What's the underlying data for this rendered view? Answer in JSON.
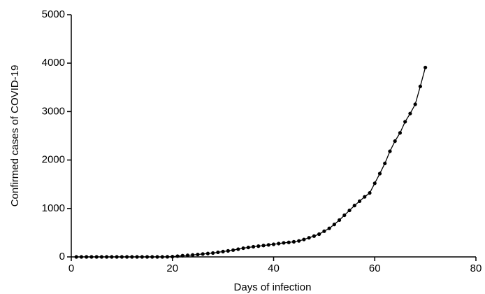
{
  "chart_data": {
    "type": "line",
    "x_label": "Days of infection",
    "y_label": "Confirmed cases of COVID-19",
    "x": [
      1,
      2,
      3,
      4,
      5,
      6,
      7,
      8,
      9,
      10,
      11,
      12,
      13,
      14,
      15,
      16,
      17,
      18,
      19,
      20,
      21,
      22,
      23,
      24,
      25,
      26,
      27,
      28,
      29,
      30,
      31,
      32,
      33,
      34,
      35,
      36,
      37,
      38,
      39,
      40,
      41,
      42,
      43,
      44,
      45,
      46,
      47,
      48,
      49,
      50,
      51,
      52,
      53,
      54,
      55,
      56,
      57,
      58,
      59,
      60,
      61,
      62,
      63,
      64,
      65,
      66,
      67,
      68,
      69,
      70
    ],
    "values": [
      0,
      0,
      0,
      0,
      0,
      0,
      0,
      0,
      0,
      0,
      0,
      0,
      0,
      0,
      0,
      0,
      0,
      0,
      2,
      5,
      15,
      25,
      32,
      40,
      50,
      60,
      70,
      80,
      95,
      110,
      125,
      140,
      160,
      180,
      195,
      210,
      222,
      235,
      248,
      260,
      275,
      290,
      300,
      312,
      330,
      360,
      395,
      430,
      470,
      530,
      590,
      670,
      760,
      860,
      960,
      1060,
      1150,
      1240,
      1320,
      1520,
      1720,
      1930,
      2180,
      2390,
      2560,
      2790,
      2960,
      3150,
      3520,
      3910
    ],
    "color": "#000000",
    "xlim": [
      0,
      80
    ],
    "xticks": [
      0,
      20,
      40,
      60,
      80
    ],
    "ylim": [
      0,
      5000
    ],
    "yticks": [
      0,
      1000,
      2000,
      3000,
      4000,
      5000
    ]
  }
}
